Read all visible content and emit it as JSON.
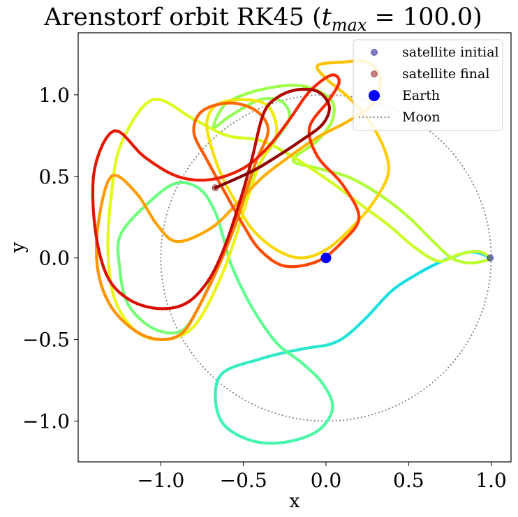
{
  "chart_data": {
    "type": "line",
    "title_main": "Arenstorf orbit RK45 (",
    "title_math": "t",
    "title_sub": "max",
    "title_tail": " = 100.0)",
    "xlabel": "x",
    "ylabel": "y",
    "xlim": [
      -1.5,
      1.12
    ],
    "ylim": [
      -1.25,
      1.38
    ],
    "xticks": [
      -1.0,
      -0.5,
      0.0,
      0.5,
      1.0
    ],
    "xtick_labels": [
      "−1.0",
      "−0.5",
      "0.0",
      "0.5",
      "1.0"
    ],
    "yticks": [
      -1.0,
      -0.5,
      0.0,
      0.5,
      1.0
    ],
    "ytick_labels": [
      "−1.0",
      "−0.5",
      "0.0",
      "0.5",
      "1.0"
    ],
    "grid": false,
    "legend_position": "top-right",
    "legend": [
      {
        "label": "satellite initial",
        "kind": "marker",
        "color": "#00008b",
        "alpha": 0.5
      },
      {
        "label": "satellite final",
        "kind": "marker",
        "color": "#8b0000",
        "alpha": 0.5
      },
      {
        "label": "Earth",
        "kind": "marker",
        "color": "#0000ff",
        "alpha": 1.0
      },
      {
        "label": "Moon",
        "kind": "dotted",
        "color": "#808080",
        "alpha": 1.0
      }
    ],
    "earth": {
      "x": 0.0,
      "y": 0.0,
      "color": "#0000ff"
    },
    "moon_orbit": {
      "cx": 0.0,
      "cy": 0.0,
      "r": 1.0,
      "color": "#808080"
    },
    "satellite_initial": {
      "x": 0.994,
      "y": 0.0,
      "color": "#00008b"
    },
    "satellite_final": {
      "x": -0.67,
      "y": 0.43,
      "color": "#8b0000"
    },
    "orbit": {
      "colormap": "jet (cyan to dark red over time)",
      "points": [
        [
          0.994,
          0.0
        ],
        [
          0.93,
          0.03
        ],
        [
          0.86,
          0.035
        ],
        [
          0.78,
          0.01
        ],
        [
          0.68,
          -0.03
        ],
        [
          0.55,
          -0.1
        ],
        [
          0.4,
          -0.2
        ],
        [
          0.25,
          -0.36
        ],
        [
          0.12,
          -0.48
        ],
        [
          0.02,
          -0.53
        ],
        [
          -0.1,
          -0.55
        ],
        [
          -0.25,
          -0.58
        ],
        [
          -0.4,
          -0.62
        ],
        [
          -0.62,
          -0.7
        ],
        [
          -0.67,
          -0.85
        ],
        [
          -0.62,
          -1.02
        ],
        [
          -0.45,
          -1.12
        ],
        [
          -0.25,
          -1.13
        ],
        [
          -0.05,
          -1.06
        ],
        [
          0.04,
          -0.92
        ],
        [
          -0.02,
          -0.77
        ],
        [
          -0.15,
          -0.64
        ],
        [
          -0.3,
          -0.52
        ],
        [
          -0.45,
          -0.3
        ],
        [
          -0.57,
          -0.05
        ],
        [
          -0.62,
          0.12
        ],
        [
          -0.67,
          0.28
        ],
        [
          -0.76,
          0.42
        ],
        [
          -0.9,
          0.46
        ],
        [
          -1.05,
          0.36
        ],
        [
          -1.24,
          0.15
        ],
        [
          -1.25,
          -0.05
        ],
        [
          -1.2,
          -0.28
        ],
        [
          -1.05,
          -0.43
        ],
        [
          -0.88,
          -0.45
        ],
        [
          -0.77,
          -0.3
        ],
        [
          -0.66,
          -0.05
        ],
        [
          -0.56,
          0.2
        ],
        [
          -0.47,
          0.42
        ],
        [
          -0.4,
          0.58
        ],
        [
          -0.3,
          0.73
        ],
        [
          -0.22,
          0.86
        ],
        [
          -0.27,
          0.96
        ],
        [
          -0.4,
          0.97
        ],
        [
          -0.58,
          0.87
        ],
        [
          -0.68,
          0.8
        ],
        [
          -0.62,
          0.93
        ],
        [
          -0.5,
          1.0
        ],
        [
          -0.3,
          1.05
        ],
        [
          -0.12,
          1.05
        ],
        [
          0.03,
          0.97
        ],
        [
          0.04,
          0.85
        ],
        [
          -0.05,
          0.72
        ],
        [
          -0.2,
          0.6
        ],
        [
          -0.05,
          0.55
        ],
        [
          0.15,
          0.49
        ],
        [
          0.35,
          0.37
        ],
        [
          0.5,
          0.25
        ],
        [
          0.65,
          0.1
        ],
        [
          0.76,
          0.0
        ],
        [
          0.86,
          -0.03
        ],
        [
          0.95,
          -0.02
        ],
        [
          0.99,
          0.0
        ],
        [
          0.92,
          0.04
        ],
        [
          0.8,
          0.02
        ],
        [
          0.68,
          -0.02
        ],
        [
          0.53,
          0.07
        ],
        [
          0.38,
          0.2
        ],
        [
          0.22,
          0.32
        ],
        [
          0.05,
          0.45
        ],
        [
          -0.2,
          0.62
        ],
        [
          -0.4,
          0.72
        ],
        [
          -0.6,
          0.75
        ],
        [
          -0.8,
          0.85
        ],
        [
          -1.05,
          0.97
        ],
        [
          -1.24,
          0.7
        ],
        [
          -1.3,
          0.38
        ],
        [
          -1.32,
          0.05
        ],
        [
          -1.28,
          -0.25
        ],
        [
          -1.15,
          -0.45
        ],
        [
          -0.98,
          -0.5
        ],
        [
          -0.8,
          -0.42
        ],
        [
          -0.65,
          -0.15
        ],
        [
          -0.55,
          0.12
        ],
        [
          -0.48,
          0.35
        ],
        [
          -0.4,
          0.58
        ],
        [
          -0.3,
          0.76
        ],
        [
          -0.35,
          0.93
        ],
        [
          -0.5,
          0.97
        ],
        [
          -0.66,
          0.94
        ],
        [
          -0.72,
          0.84
        ],
        [
          -0.7,
          0.7
        ],
        [
          -0.63,
          0.5
        ],
        [
          -0.55,
          0.35
        ],
        [
          -0.45,
          0.18
        ],
        [
          -0.3,
          0.05
        ],
        [
          -0.15,
          0.0
        ],
        [
          0.0,
          0.05
        ],
        [
          0.15,
          0.18
        ],
        [
          0.3,
          0.36
        ],
        [
          0.38,
          0.55
        ],
        [
          0.3,
          0.78
        ],
        [
          0.15,
          0.97
        ],
        [
          0.0,
          1.1
        ],
        [
          -0.05,
          1.18
        ],
        [
          0.1,
          1.2
        ],
        [
          0.25,
          1.2
        ],
        [
          0.33,
          1.1
        ],
        [
          0.28,
          0.94
        ],
        [
          0.12,
          0.83
        ],
        [
          -0.05,
          0.74
        ],
        [
          -0.25,
          0.6
        ],
        [
          -0.4,
          0.48
        ],
        [
          -0.55,
          0.32
        ],
        [
          -0.7,
          0.18
        ],
        [
          -0.9,
          0.1
        ],
        [
          -1.02,
          0.2
        ],
        [
          -1.15,
          0.4
        ],
        [
          -1.3,
          0.5
        ],
        [
          -1.38,
          0.2
        ],
        [
          -1.38,
          -0.08
        ],
        [
          -1.3,
          -0.3
        ],
        [
          -1.15,
          -0.45
        ],
        [
          -1.0,
          -0.5
        ],
        [
          -0.87,
          -0.46
        ],
        [
          -0.77,
          -0.3
        ],
        [
          -0.65,
          -0.05
        ],
        [
          -0.55,
          0.2
        ],
        [
          -0.48,
          0.42
        ],
        [
          -0.42,
          0.6
        ],
        [
          -0.35,
          0.78
        ],
        [
          -0.42,
          0.9
        ],
        [
          -0.58,
          0.95
        ],
        [
          -0.75,
          0.9
        ],
        [
          -0.8,
          0.77
        ],
        [
          -0.72,
          0.6
        ],
        [
          -0.6,
          0.38
        ],
        [
          -0.5,
          0.2
        ],
        [
          -0.4,
          0.05
        ],
        [
          -0.25,
          -0.05
        ],
        [
          -0.05,
          -0.02
        ],
        [
          0.1,
          0.1
        ],
        [
          0.2,
          0.25
        ],
        [
          0.1,
          0.45
        ],
        [
          -0.05,
          0.62
        ],
        [
          -0.1,
          0.8
        ],
        [
          0.02,
          0.97
        ],
        [
          0.08,
          1.08
        ],
        [
          0.03,
          1.12
        ],
        [
          -0.1,
          1.02
        ],
        [
          -0.22,
          0.85
        ],
        [
          -0.35,
          0.68
        ],
        [
          -0.5,
          0.55
        ],
        [
          -0.7,
          0.48
        ],
        [
          -0.9,
          0.5
        ],
        [
          -1.1,
          0.62
        ],
        [
          -1.28,
          0.78
        ],
        [
          -1.4,
          0.55
        ],
        [
          -1.4,
          0.2
        ],
        [
          -1.33,
          -0.1
        ],
        [
          -1.2,
          -0.25
        ],
        [
          -1.02,
          -0.31
        ],
        [
          -0.85,
          -0.28
        ],
        [
          -0.72,
          -0.15
        ],
        [
          -0.62,
          0.05
        ],
        [
          -0.52,
          0.35
        ],
        [
          -0.45,
          0.6
        ],
        [
          -0.38,
          0.88
        ],
        [
          -0.3,
          0.98
        ],
        [
          -0.18,
          1.03
        ],
        [
          -0.05,
          1.02
        ],
        [
          0.02,
          0.93
        ],
        [
          -0.02,
          0.82
        ],
        [
          -0.15,
          0.72
        ],
        [
          -0.3,
          0.62
        ],
        [
          -0.45,
          0.53
        ],
        [
          -0.67,
          0.43
        ]
      ]
    }
  }
}
